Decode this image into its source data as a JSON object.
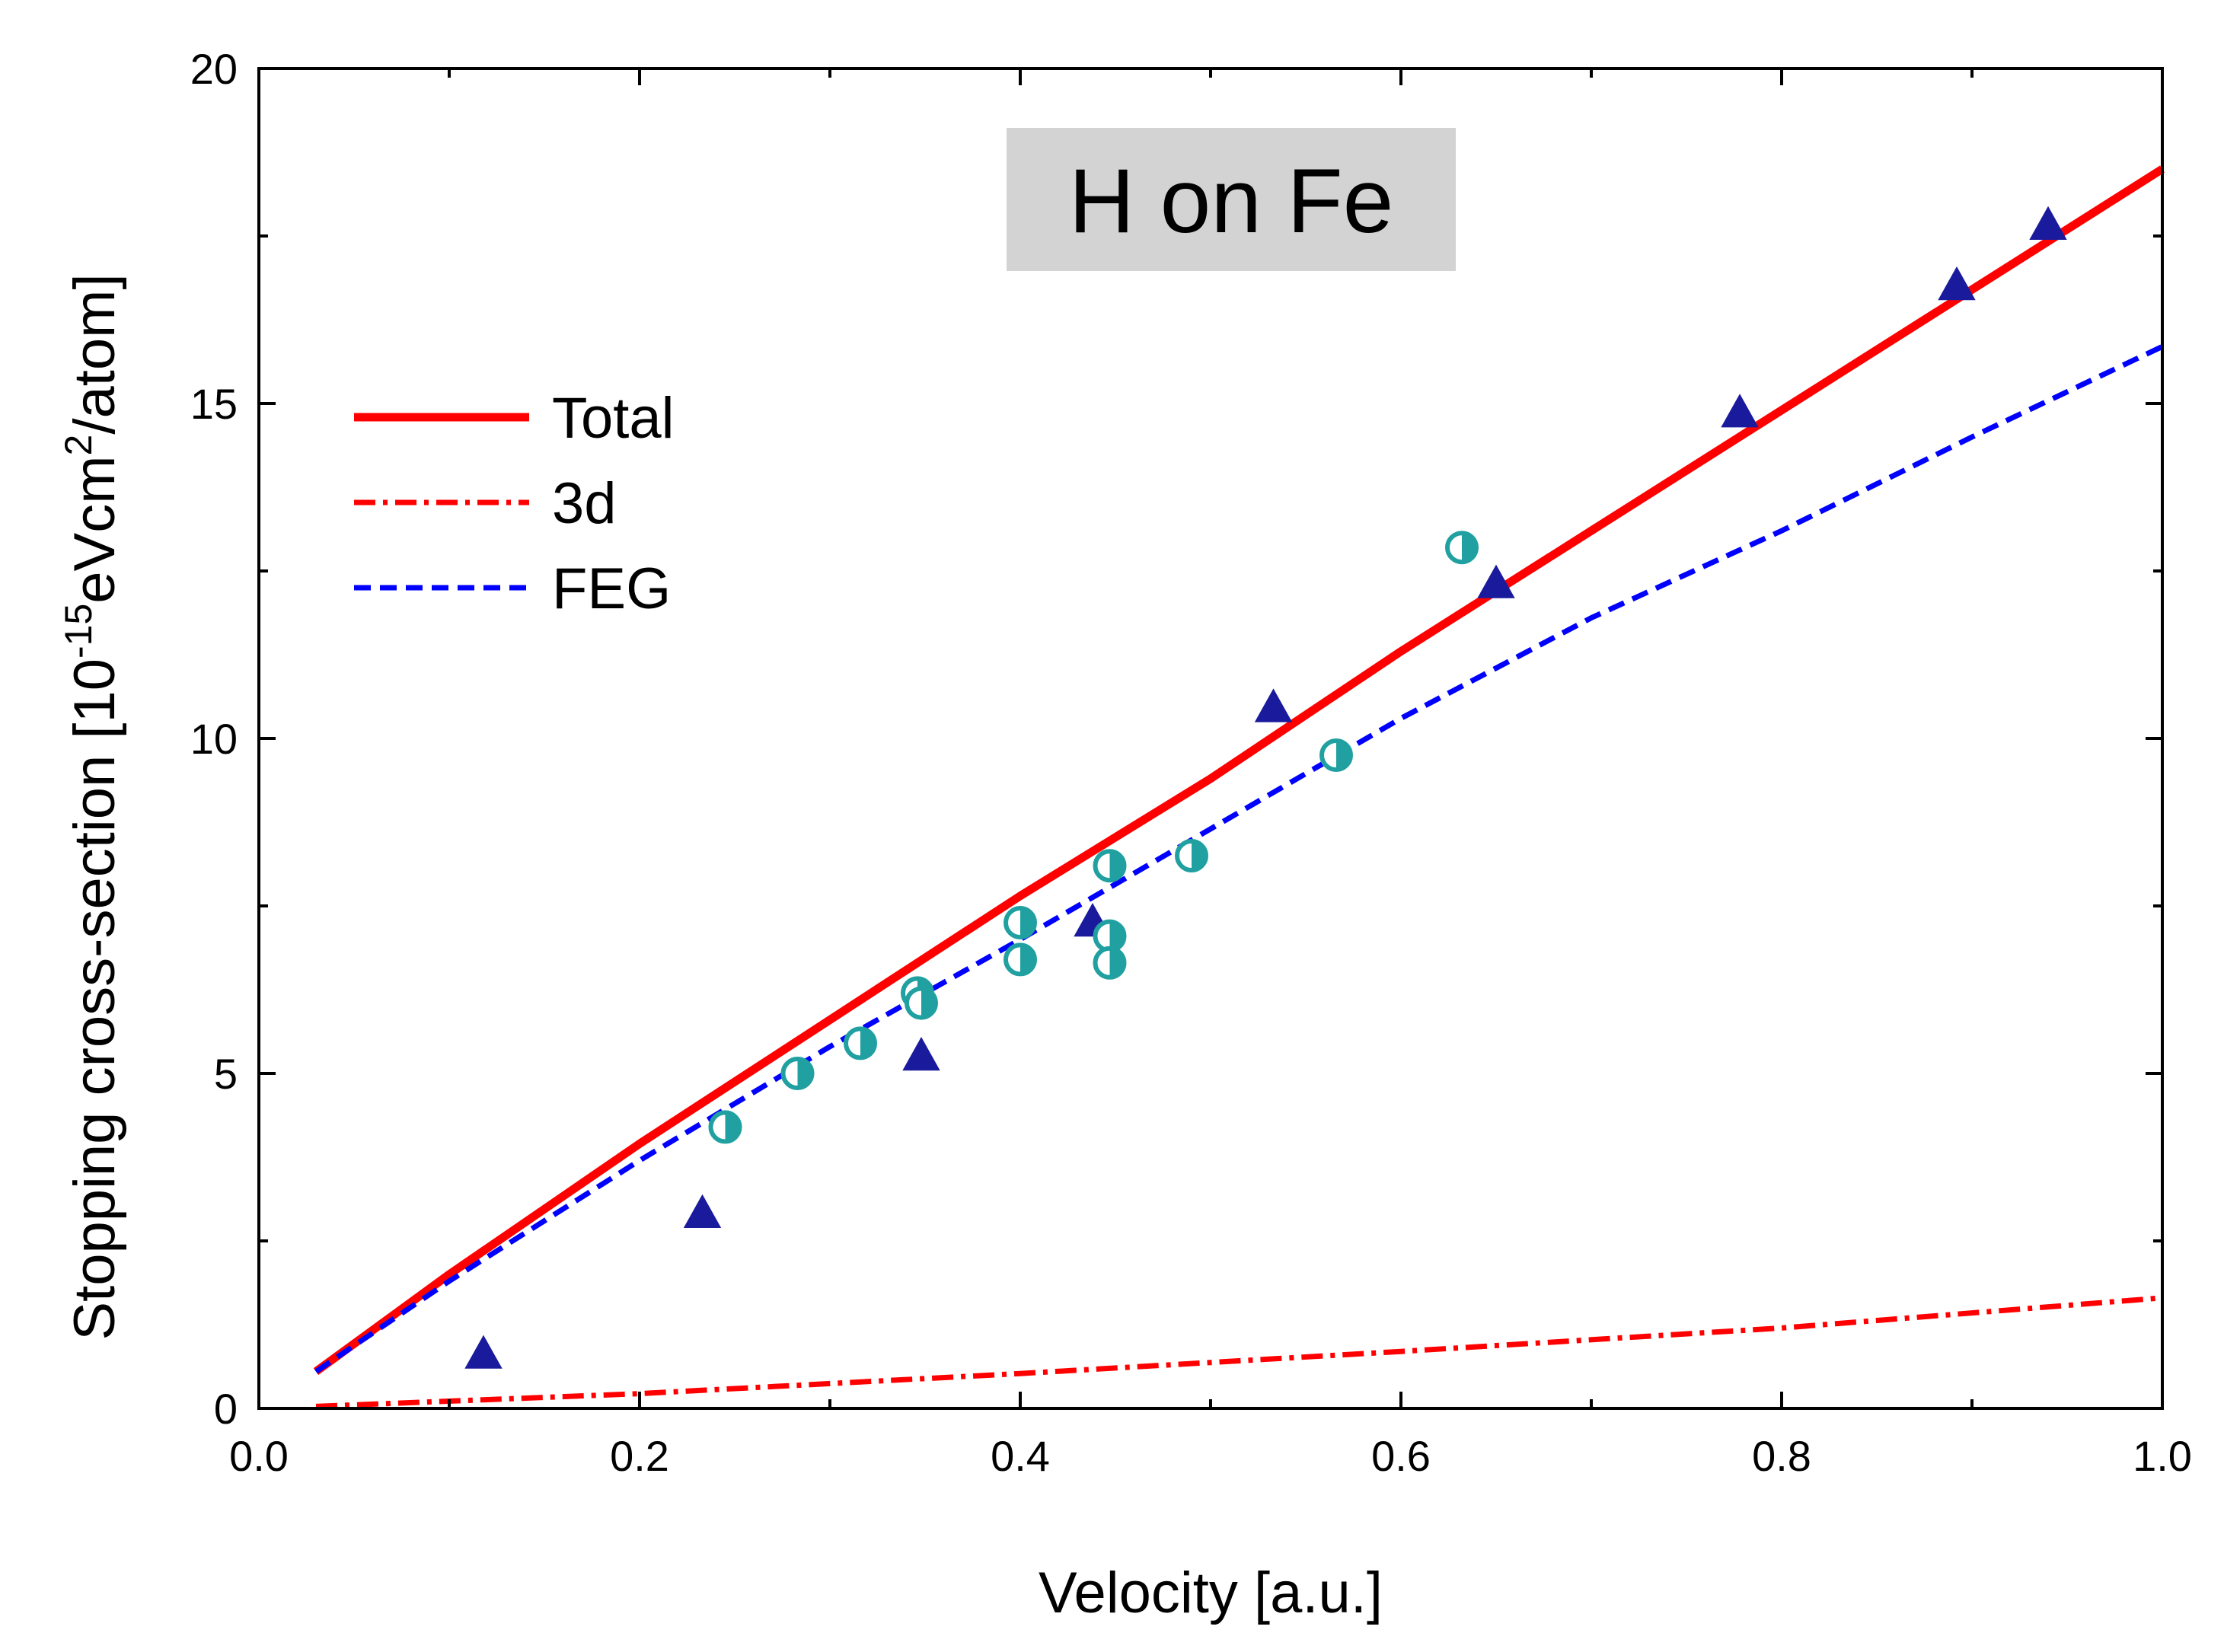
{
  "chart_data": {
    "type": "line",
    "annotation": "H on Fe",
    "xlabel": "Velocity [a.u.]",
    "ylabel": {
      "prefix": "Stopping cross-section [10",
      "exp1": "-15",
      "middle": "eVcm",
      "exp2": "2",
      "suffix": "/atom]"
    },
    "xlim": [
      0.0,
      1.0
    ],
    "ylim": [
      0,
      20
    ],
    "xticks": [
      0.0,
      0.2,
      0.4,
      0.6,
      0.8,
      1.0
    ],
    "xtick_labels": [
      "0.0",
      "0.2",
      "0.4",
      "0.6",
      "0.8",
      "1.0"
    ],
    "yticks": [
      0,
      5,
      10,
      15,
      20
    ],
    "ytick_labels": [
      "0",
      "5",
      "10",
      "15",
      "20"
    ],
    "legend_position": "left",
    "series": [
      {
        "name": "Total",
        "style": "solid",
        "color": "#ff0000",
        "x": [
          0.03,
          0.1,
          0.2,
          0.3,
          0.4,
          0.5,
          0.6,
          0.7,
          0.8,
          0.9,
          1.0
        ],
        "y": [
          0.55,
          2.0,
          3.95,
          5.8,
          7.65,
          9.4,
          11.3,
          13.1,
          14.9,
          16.7,
          18.5
        ]
      },
      {
        "name": "3d",
        "style": "dashdot",
        "color": "#ff0000",
        "x": [
          0.03,
          0.2,
          0.4,
          0.6,
          0.8,
          1.0
        ],
        "y": [
          0.03,
          0.22,
          0.52,
          0.85,
          1.2,
          1.65
        ]
      },
      {
        "name": "FEG",
        "style": "dashed",
        "color": "#0000ff",
        "x": [
          0.03,
          0.1,
          0.2,
          0.3,
          0.4,
          0.5,
          0.6,
          0.7,
          0.8,
          0.9,
          1.0
        ],
        "y": [
          0.55,
          1.9,
          3.7,
          5.4,
          7.0,
          8.65,
          10.3,
          11.8,
          13.1,
          14.5,
          15.85
        ]
      }
    ],
    "markers": [
      {
        "shape": "triangle",
        "color": "#1a1a9c",
        "points": [
          [
            0.118,
            0.8
          ],
          [
            0.233,
            2.9
          ],
          [
            0.348,
            5.25
          ],
          [
            0.438,
            7.25
          ],
          [
            0.533,
            10.45
          ],
          [
            0.65,
            12.3
          ],
          [
            0.778,
            14.85
          ],
          [
            0.892,
            16.75
          ],
          [
            0.94,
            17.65
          ]
        ]
      },
      {
        "shape": "half-filled-circle",
        "color": "#20a0a0",
        "points": [
          [
            0.245,
            4.2
          ],
          [
            0.283,
            5.0
          ],
          [
            0.316,
            5.45
          ],
          [
            0.346,
            6.2
          ],
          [
            0.348,
            6.05
          ],
          [
            0.4,
            7.25
          ],
          [
            0.4,
            6.7
          ],
          [
            0.447,
            8.1
          ],
          [
            0.447,
            7.05
          ],
          [
            0.447,
            6.65
          ],
          [
            0.49,
            8.25
          ],
          [
            0.566,
            9.75
          ],
          [
            0.632,
            12.85
          ]
        ]
      }
    ]
  }
}
